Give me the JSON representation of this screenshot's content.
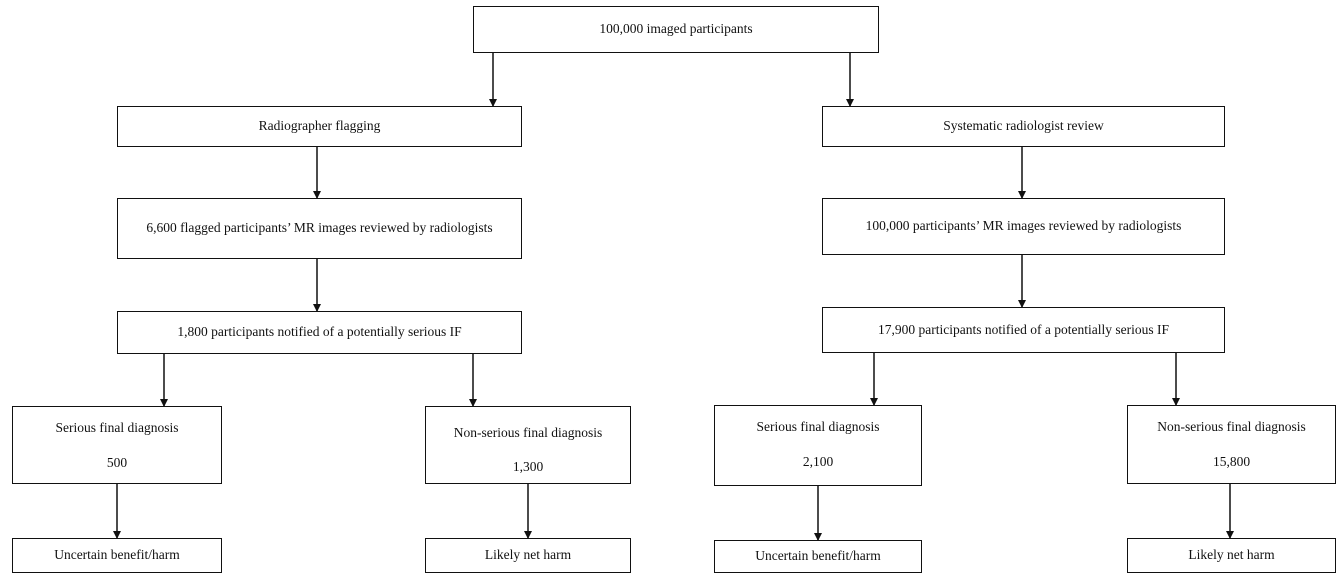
{
  "root": {
    "label": "100,000 imaged participants"
  },
  "left_branch": {
    "method": "Radiographer flagging",
    "review": "6,600 flagged participants’ MR images reviewed by radiologists",
    "notified": "1,800 participants notified of a potentially serious IF",
    "serious": {
      "title": "Serious final diagnosis",
      "count": "500",
      "outcome": "Uncertain benefit/harm"
    },
    "nonserious": {
      "title": "Non-serious final diagnosis",
      "count": "1,300",
      "outcome": "Likely net harm"
    }
  },
  "right_branch": {
    "method": "Systematic radiologist review",
    "review": "100,000 participants’ MR images reviewed by radiologists",
    "notified": "17,900 participants notified of a potentially serious IF",
    "serious": {
      "title": "Serious final diagnosis",
      "count": "2,100",
      "outcome": "Uncertain benefit/harm"
    },
    "nonserious": {
      "title": "Non-serious final diagnosis",
      "count": "15,800",
      "outcome": "Likely net harm"
    }
  }
}
